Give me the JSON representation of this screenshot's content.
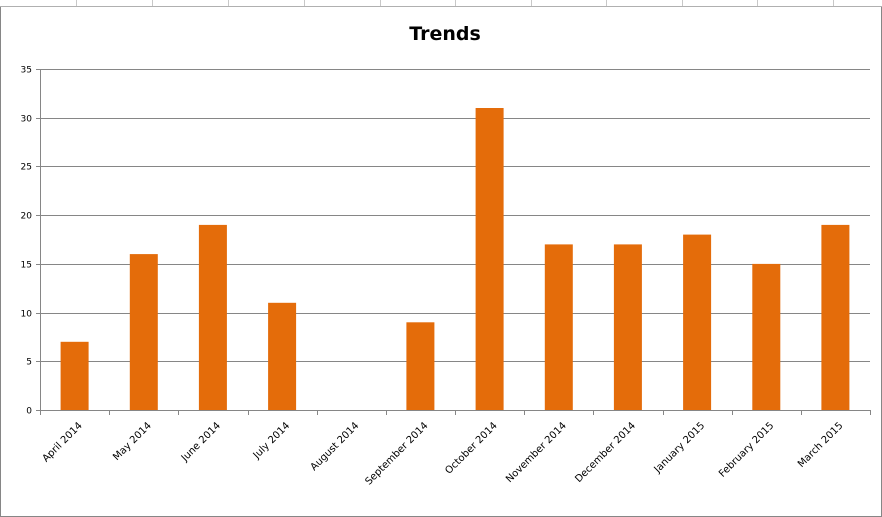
{
  "chart_data": {
    "type": "bar",
    "title": "Trends",
    "xlabel": "",
    "ylabel": "",
    "categories": [
      "April 2014",
      "May 2014",
      "June 2014",
      "July 2014",
      "August 2014",
      "September 2014",
      "October 2014",
      "November 2014",
      "December 2014",
      "January 2015",
      "February 2015",
      "March 2015"
    ],
    "values": [
      7,
      16,
      19,
      11,
      0,
      9,
      31,
      17,
      17,
      18,
      15,
      19
    ],
    "ylim": [
      0,
      35
    ],
    "yticks": [
      0,
      5,
      10,
      15,
      20,
      25,
      30,
      35
    ],
    "grid": true,
    "legend": "none",
    "bar_color": "#E46C0A"
  }
}
